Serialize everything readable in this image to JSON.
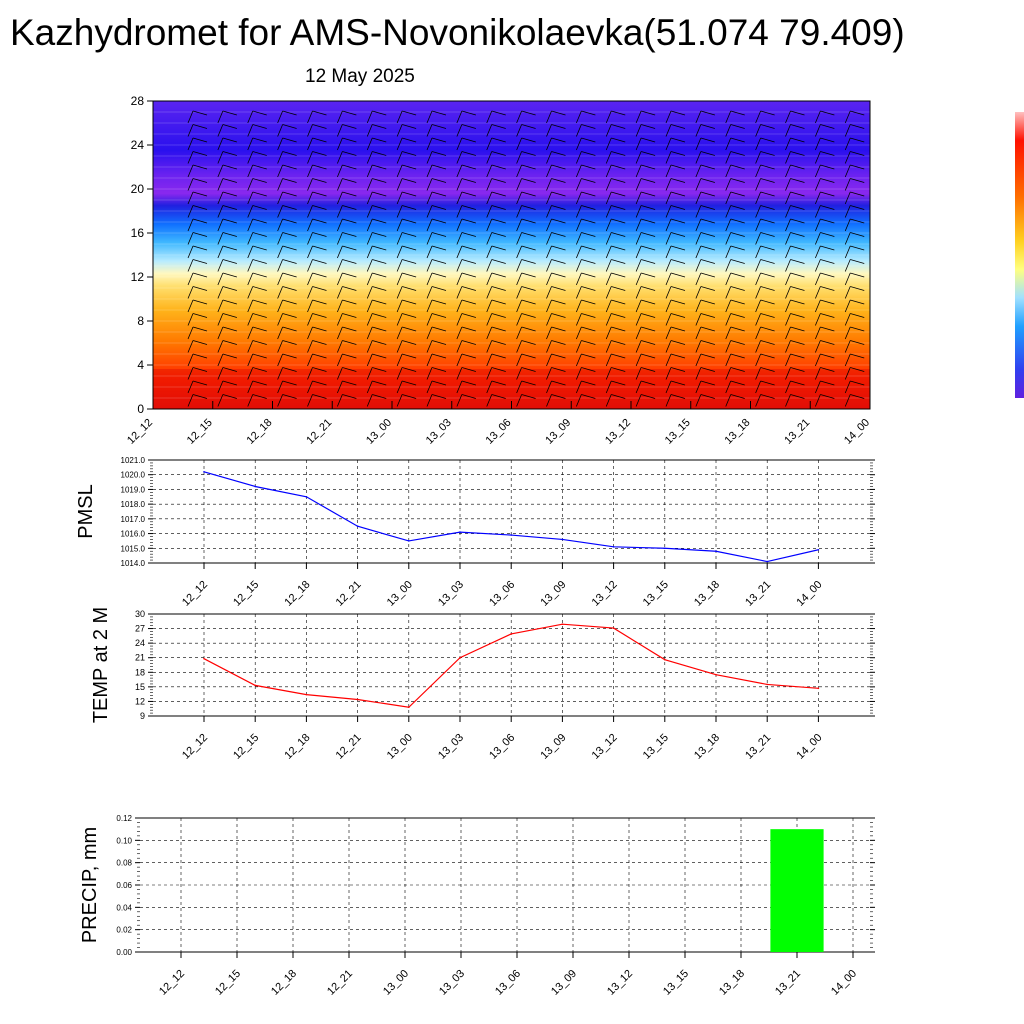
{
  "header": {
    "title": "Kazhydromet for AMS-Novonikolaevka(51.074 79.409)",
    "date": "12 May 2025"
  },
  "colors": {
    "pmsl_line": "#0000ff",
    "temp_line": "#ff0000",
    "precip_bar": "#00ff00",
    "heatmap_scale": [
      "#ff1a00",
      "#ff4000",
      "#ff8000",
      "#ffb000",
      "#ffd84a",
      "#fff8a0",
      "#aee9ff",
      "#3cb8ff",
      "#1060ff",
      "#3a1ee0",
      "#7a22f0",
      "#2b10ee",
      "#4a1af2",
      "#5a1ef2"
    ]
  },
  "chart_data": [
    {
      "type": "heatmap",
      "title": "",
      "xlabel": "",
      "ylabel": "",
      "categories": [
        "12_12",
        "12_15",
        "12_18",
        "12_21",
        "13_00",
        "13_03",
        "13_06",
        "13_09",
        "13_12",
        "13_15",
        "13_18",
        "13_21",
        "14_00"
      ],
      "y_ticks": [
        "0",
        "4",
        "8",
        "12",
        "16",
        "20",
        "24",
        "28"
      ],
      "ylim": [
        0,
        28
      ],
      "grid": false,
      "colorbar": "right, no labels"
    },
    {
      "type": "line",
      "ylabel": "PMSL",
      "categories": [
        "12_12",
        "12_15",
        "12_18",
        "12_21",
        "13_00",
        "13_03",
        "13_06",
        "13_09",
        "13_12",
        "13_15",
        "13_18",
        "13_21",
        "14_00"
      ],
      "values": [
        1020.2,
        1019.2,
        1018.5,
        1016.5,
        1015.5,
        1016.1,
        1015.9,
        1015.6,
        1015.1,
        1015.0,
        1014.8,
        1014.1,
        1014.9
      ],
      "y_ticks": [
        "1014.0",
        "1015.0",
        "1016.0",
        "1017.0",
        "1018.0",
        "1019.0",
        "1020.0",
        "1021.0"
      ],
      "ylim": [
        1014,
        1021
      ],
      "grid": true
    },
    {
      "type": "line",
      "ylabel": "TEMP at 2 M",
      "categories": [
        "12_12",
        "12_15",
        "12_18",
        "12_21",
        "13_00",
        "13_03",
        "13_06",
        "13_09",
        "13_12",
        "13_15",
        "13_18",
        "13_21",
        "14_00"
      ],
      "values": [
        20.8,
        15.3,
        13.4,
        12.4,
        10.8,
        21.0,
        25.9,
        27.9,
        27.1,
        20.6,
        17.5,
        15.5,
        14.7
      ],
      "y_ticks": [
        "9",
        "12",
        "15",
        "18",
        "21",
        "24",
        "27",
        "30"
      ],
      "ylim": [
        9,
        30
      ],
      "grid": true
    },
    {
      "type": "bar",
      "ylabel": "PRECIP, mm",
      "categories": [
        "12_12",
        "12_15",
        "12_18",
        "12_21",
        "13_00",
        "13_03",
        "13_06",
        "13_09",
        "13_12",
        "13_15",
        "13_18",
        "13_21",
        "14_00"
      ],
      "values": [
        0,
        0,
        0,
        0,
        0,
        0,
        0,
        0,
        0,
        0,
        0,
        0.11,
        0
      ],
      "y_ticks": [
        "0.00",
        "0.02",
        "0.04",
        "0.06",
        "0.08",
        "0.10",
        "0.12"
      ],
      "ylim": [
        0,
        0.12
      ],
      "grid": true
    }
  ]
}
